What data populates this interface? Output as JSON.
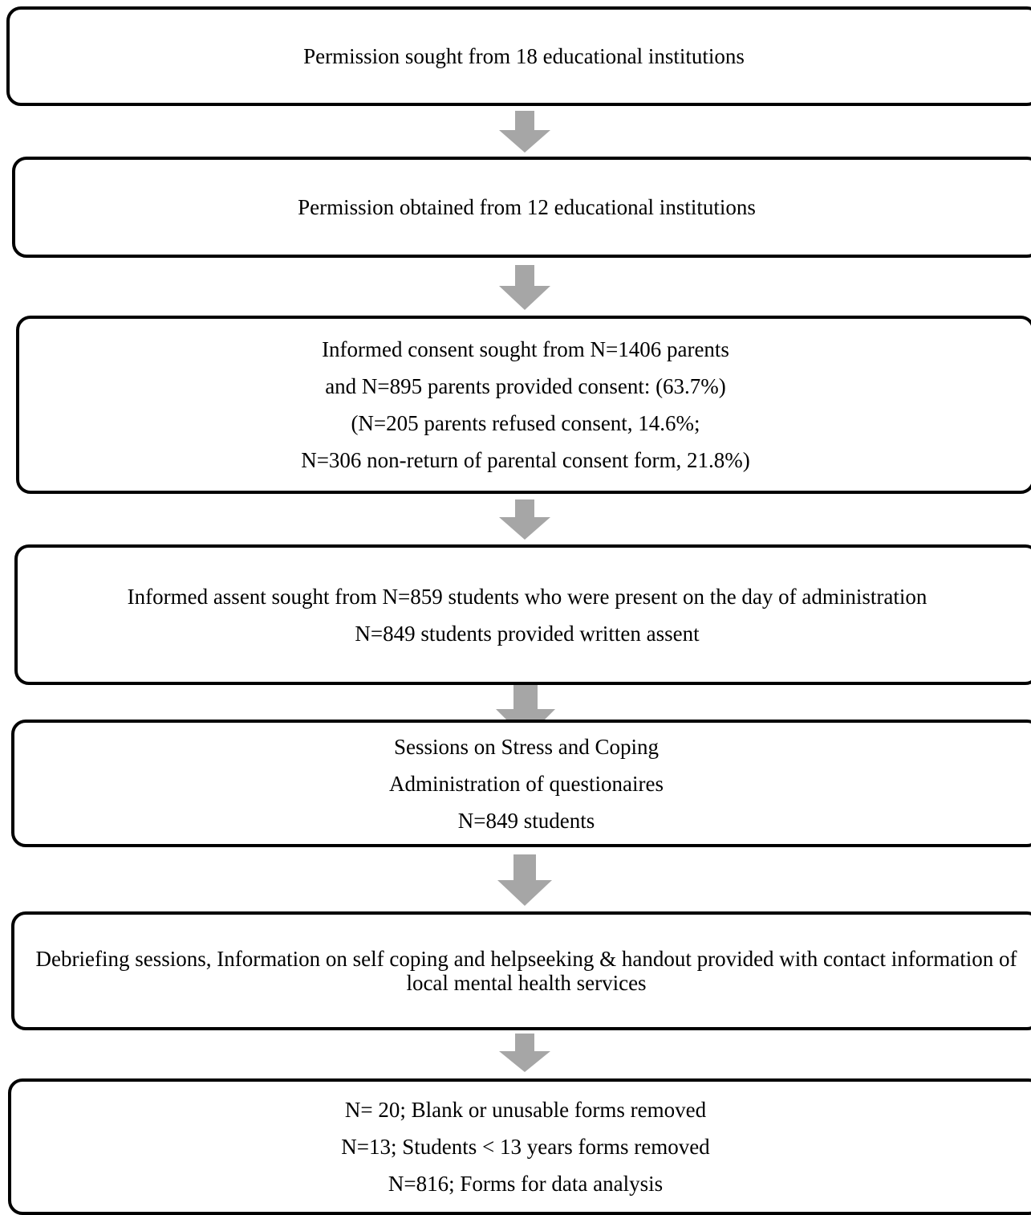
{
  "flow": {
    "steps": [
      {
        "lines": [
          "Permission sought from 18 educational institutions"
        ]
      },
      {
        "lines": [
          "Permission obtained from 12 educational institutions"
        ]
      },
      {
        "lines": [
          "Informed consent sought from N=1406 parents",
          "and N=895 parents provided consent: (63.7%)",
          "(N=205 parents refused consent, 14.6%;",
          "N=306 non-return of parental consent form, 21.8%)"
        ]
      },
      {
        "lines": [
          "Informed assent sought from N=859 students who were present on the day of administration",
          "N=849 students provided written assent"
        ]
      },
      {
        "lines": [
          "Sessions on Stress and Coping",
          "Administration of questionaires",
          "N=849 students"
        ]
      },
      {
        "lines": [
          "Debriefing sessions, Information on  self coping and helpseeking & handout provided with contact information of local mental health services"
        ]
      },
      {
        "lines": [
          "N= 20; Blank or unusable forms removed",
          "N=13; Students < 13 years forms removed",
          "N=816; Forms for data analysis"
        ]
      }
    ],
    "colors": {
      "box_border": "#000000",
      "arrow": "#a6a6a6",
      "background": "#ffffff"
    }
  }
}
